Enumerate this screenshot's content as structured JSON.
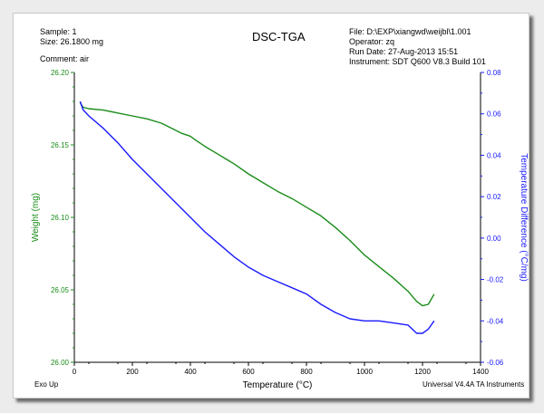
{
  "header": {
    "sample": "Sample: 1",
    "size": "Size:  26.1800 mg",
    "comment": "Comment: air",
    "title": "DSC-TGA",
    "file": "File: D:\\EXP\\xiangwd\\weijbl\\1.001",
    "operator": "Operator: zq",
    "run_date": "Run Date: 27-Aug-2013 15:51",
    "instrument": "Instrument: SDT Q600 V8.3 Build 101"
  },
  "footer": {
    "left": "Exo Up",
    "right": "Universal V4.4A TA Instruments"
  },
  "colors": {
    "weight": "#1a8c1a",
    "temp_diff": "#1a1aff",
    "axis": "#000000"
  },
  "chart_data": {
    "type": "line",
    "title": "DSC-TGA",
    "xlabel": "Temperature (°C)",
    "xlim": [
      0,
      1400
    ],
    "xticks": [
      0,
      200,
      400,
      600,
      800,
      1000,
      1200,
      1400
    ],
    "y_left": {
      "label": "Weight (mg)",
      "lim": [
        26.0,
        26.2
      ],
      "ticks": [
        "26.00",
        "26.05",
        "26.10",
        "26.15",
        "26.20"
      ]
    },
    "y_right": {
      "label": "Temperature Difference (°C/mg)",
      "lim": [
        -0.06,
        0.08
      ],
      "ticks": [
        "-0.06",
        "-0.04",
        "-0.02",
        "0.00",
        "0.02",
        "0.04",
        "0.06",
        "0.08"
      ]
    },
    "grid": false,
    "series": [
      {
        "axis": "left",
        "points": [
          [
            20,
            26.179
          ],
          [
            30,
            26.176
          ],
          [
            50,
            26.175
          ],
          [
            100,
            26.174
          ],
          [
            150,
            26.172
          ],
          [
            200,
            26.17
          ],
          [
            250,
            26.168
          ],
          [
            300,
            26.165
          ],
          [
            340,
            26.161
          ],
          [
            370,
            26.158
          ],
          [
            400,
            26.156
          ],
          [
            420,
            26.153
          ],
          [
            450,
            26.149
          ],
          [
            500,
            26.143
          ],
          [
            550,
            26.137
          ],
          [
            600,
            26.13
          ],
          [
            650,
            26.124
          ],
          [
            700,
            26.118
          ],
          [
            750,
            26.113
          ],
          [
            800,
            26.107
          ],
          [
            850,
            26.101
          ],
          [
            900,
            26.093
          ],
          [
            950,
            26.084
          ],
          [
            1000,
            26.074
          ],
          [
            1050,
            26.066
          ],
          [
            1100,
            26.058
          ],
          [
            1150,
            26.049
          ],
          [
            1180,
            26.042
          ],
          [
            1200,
            26.039
          ],
          [
            1220,
            26.04
          ],
          [
            1240,
            26.047
          ]
        ]
      },
      {
        "axis": "right",
        "points": [
          [
            20,
            0.066
          ],
          [
            30,
            0.062
          ],
          [
            50,
            0.059
          ],
          [
            100,
            0.053
          ],
          [
            150,
            0.046
          ],
          [
            200,
            0.038
          ],
          [
            250,
            0.031
          ],
          [
            300,
            0.024
          ],
          [
            350,
            0.017
          ],
          [
            400,
            0.01
          ],
          [
            450,
            0.003
          ],
          [
            500,
            -0.003
          ],
          [
            550,
            -0.009
          ],
          [
            600,
            -0.014
          ],
          [
            650,
            -0.018
          ],
          [
            700,
            -0.021
          ],
          [
            750,
            -0.024
          ],
          [
            800,
            -0.027
          ],
          [
            850,
            -0.032
          ],
          [
            900,
            -0.036
          ],
          [
            950,
            -0.039
          ],
          [
            1000,
            -0.04
          ],
          [
            1050,
            -0.04
          ],
          [
            1100,
            -0.041
          ],
          [
            1150,
            -0.042
          ],
          [
            1180,
            -0.046
          ],
          [
            1200,
            -0.046
          ],
          [
            1220,
            -0.044
          ],
          [
            1240,
            -0.04
          ]
        ]
      }
    ]
  }
}
